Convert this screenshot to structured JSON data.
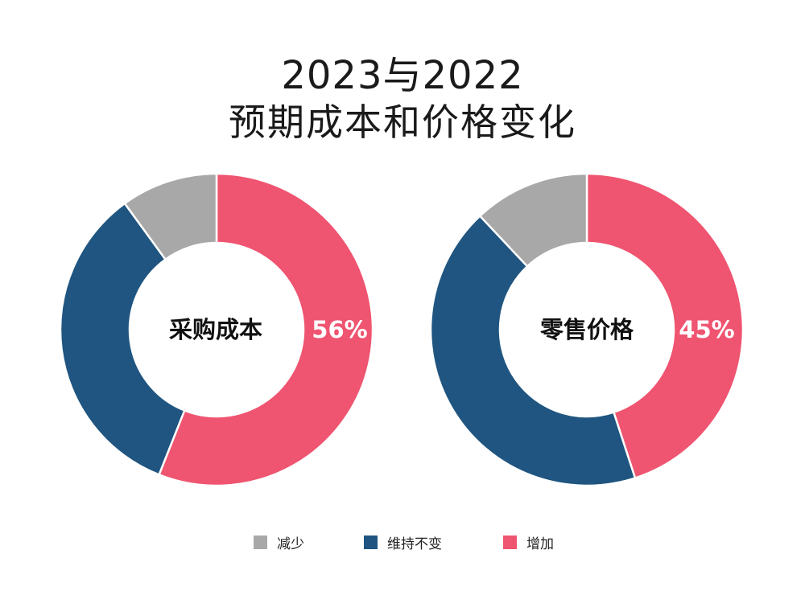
{
  "title": {
    "line1": "2023与2022",
    "line2": "预期成本和价格变化"
  },
  "colors": {
    "decrease": "#a8a8a8",
    "unchanged": "#1f5580",
    "increase": "#ef5470"
  },
  "chart_data": [
    {
      "type": "pie",
      "name": "采购成本",
      "center_label": "采购成本",
      "categories": [
        "减少",
        "维持不变",
        "增加"
      ],
      "values": [
        10,
        34,
        56
      ],
      "percent_label": "56%"
    },
    {
      "type": "pie",
      "name": "零售价格",
      "center_label": "零售价格",
      "categories": [
        "减少",
        "维持不变",
        "增加"
      ],
      "values": [
        12,
        43,
        45
      ],
      "percent_label": "45%"
    }
  ],
  "legend": {
    "items": [
      {
        "label": "减少",
        "color": "#a8a8a8"
      },
      {
        "label": "维持不变",
        "color": "#1f5580"
      },
      {
        "label": "增加",
        "color": "#ef5470"
      }
    ],
    "placement": "bottom"
  }
}
